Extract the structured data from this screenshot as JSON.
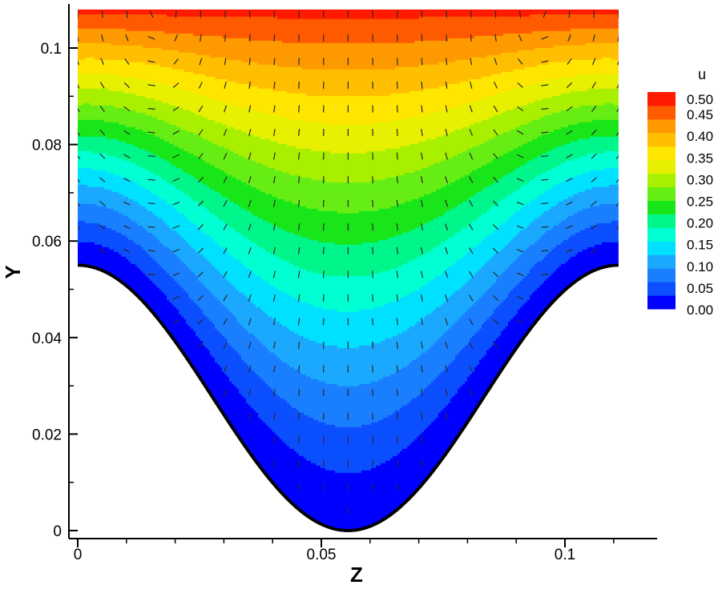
{
  "chart_data": {
    "type": "heatmap",
    "title": "",
    "xlabel": "Z",
    "ylabel": "Y",
    "xlim": [
      -0.002,
      0.12
    ],
    "ylim": [
      0,
      0.108
    ],
    "x_ticks": [
      "0",
      "0.05",
      "0.1"
    ],
    "y_ticks": [
      "0",
      "0.02",
      "0.04",
      "0.06",
      "0.08",
      "0.1"
    ],
    "domain": {
      "z_range": [
        0,
        0.111
      ],
      "y_top": 0.108,
      "bottom_wall": "cosine-shaped trough from y=0.055 at z=0 and z=0.111 down to y=0 at z=0.0555"
    },
    "colorbar": {
      "title": "u",
      "levels": [
        "0.50",
        "0.45",
        "0.40",
        "0.35",
        "0.30",
        "0.25",
        "0.20",
        "0.15",
        "0.10",
        "0.05",
        "0.00"
      ],
      "colors": [
        "#0000ff",
        "#0b4fff",
        "#1a7fff",
        "#1aa9ff",
        "#00e1ff",
        "#00ffd2",
        "#00f58a",
        "#19e619",
        "#66ee14",
        "#a8f000",
        "#e6f000",
        "#ffe600",
        "#ffbe00",
        "#ff9900",
        "#ff5a00",
        "#ff1a00"
      ]
    },
    "u_field": {
      "description": "streamwise velocity contours; u=0 on the wall, increasing toward the top",
      "max": 0.48,
      "min": 0.0
    },
    "vector_field": "secondary-flow arrows (v,w): downward along the centerline, upward near the side walls",
    "grid": false,
    "legend_position": "right"
  }
}
